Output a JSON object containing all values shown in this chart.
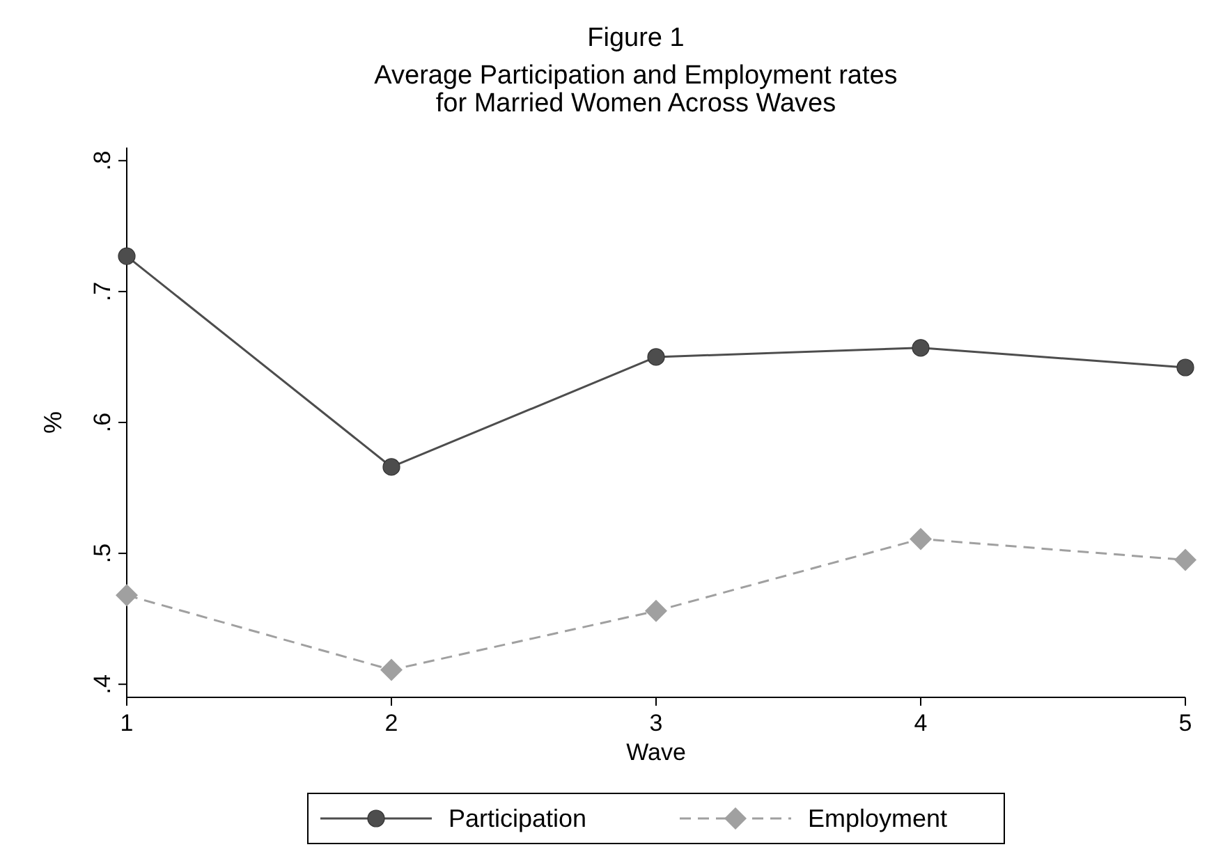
{
  "chart_data": {
    "type": "line",
    "title": "Figure 1",
    "subtitle": "Average Participation and Employment rates\nfor Married Women Across Waves",
    "xlabel": "Wave",
    "ylabel": "%",
    "x": [
      1,
      2,
      3,
      4,
      5
    ],
    "series": [
      {
        "name": "Participation",
        "color": "#4d4d4d",
        "values": [
          0.727,
          0.566,
          0.65,
          0.657,
          0.642
        ],
        "marker": "circle",
        "line_style": "solid"
      },
      {
        "name": "Employment",
        "color": "#a0a0a0",
        "values": [
          0.468,
          0.411,
          0.456,
          0.511,
          0.495
        ],
        "marker": "diamond",
        "line_style": "dashed"
      }
    ],
    "xlim": [
      1,
      5
    ],
    "xticks": [
      1,
      2,
      3,
      4,
      5
    ],
    "ylim": [
      0.39,
      0.81
    ],
    "yticks": [
      {
        "value": 0.4,
        "label": ".4"
      },
      {
        "value": 0.5,
        "label": ".5"
      },
      {
        "value": 0.6,
        "label": ".6"
      },
      {
        "value": 0.7,
        "label": ".7"
      },
      {
        "value": 0.8,
        "label": ".8"
      }
    ],
    "grid": false,
    "legend": "bottom"
  }
}
